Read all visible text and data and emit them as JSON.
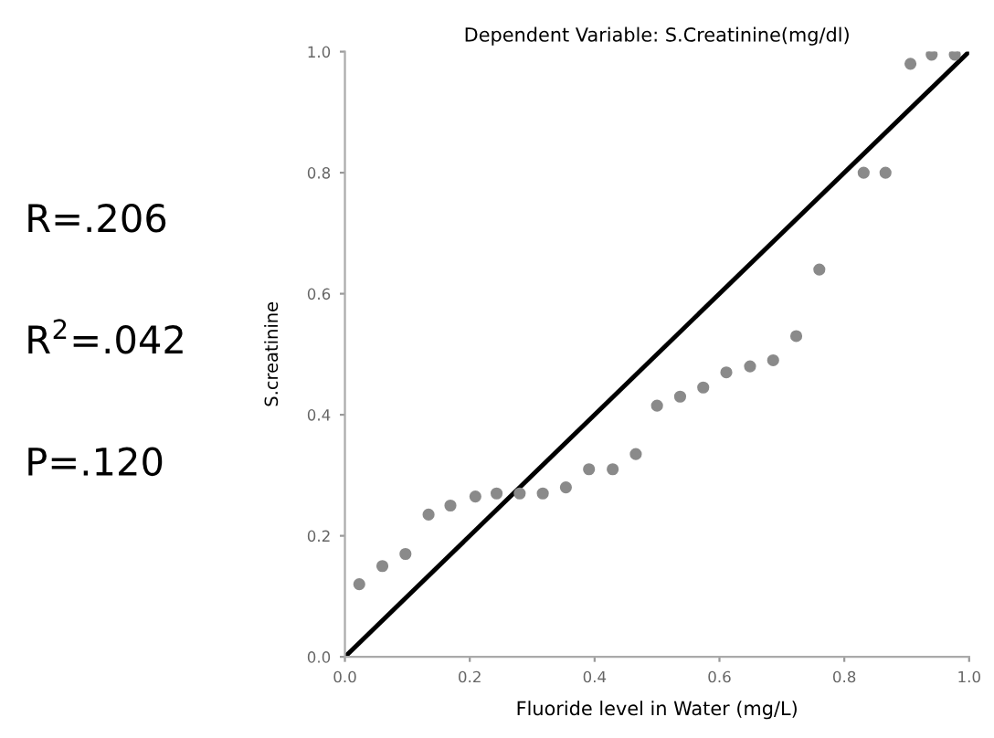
{
  "chart_data": {
    "type": "scatter",
    "title": "Dependent Variable: S.Creatinine(mg/dl)",
    "xlabel": "Fluoride level in Water (mg/L)",
    "ylabel": "S.creatinine",
    "annotations": [
      "R=.206",
      "R$^{2}$=.042",
      "P=.120"
    ],
    "series": [
      {
        "color": "#8a8a8a",
        "marker": "circle",
        "x": [
          0.023,
          0.06,
          0.097,
          0.134,
          0.169,
          0.209,
          0.243,
          0.28,
          0.317,
          0.354,
          0.391,
          0.429,
          0.466,
          0.5,
          0.537,
          0.574,
          0.611,
          0.649,
          0.686,
          0.723,
          0.76,
          0.831,
          0.866,
          0.906,
          0.94,
          0.977
        ],
        "values": [
          0.12,
          0.15,
          0.17,
          0.235,
          0.25,
          0.265,
          0.27,
          0.27,
          0.27,
          0.28,
          0.31,
          0.31,
          0.335,
          0.415,
          0.43,
          0.445,
          0.47,
          0.48,
          0.49,
          0.53,
          0.64,
          0.8,
          0.8,
          0.98,
          0.995,
          0.995
        ]
      },
      {
        "type": "line",
        "color": "#000000",
        "marker": "none",
        "x": [
          0,
          1
        ],
        "values": [
          0,
          1
        ]
      }
    ],
    "xlim": [
      0,
      1
    ],
    "ylim": [
      0,
      1
    ],
    "xticks": [
      {
        "value": 0,
        "label": "0.0"
      },
      0.2,
      0.4,
      0.6,
      0.8,
      {
        "value": 1,
        "label": "1.0"
      }
    ],
    "yticks": [
      {
        "value": 0,
        "label": "0.0"
      },
      0.2,
      0.4,
      0.6,
      0.8,
      {
        "value": 1,
        "label": "1.0"
      }
    ],
    "grid": false,
    "legend": false
  }
}
